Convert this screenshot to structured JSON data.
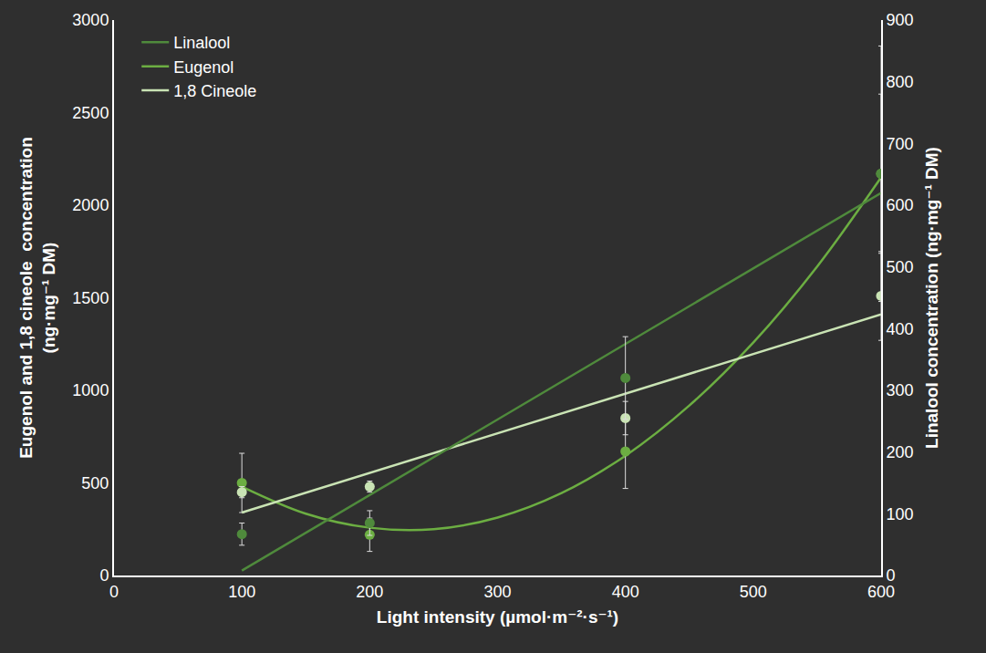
{
  "chart_data": {
    "type": "scatter",
    "xlabel": "Light intensity (µmol·m⁻²·s⁻¹)",
    "ylabel": "Eugenol and 1,8 cineole  concentration\n(ng·mg⁻¹ DM)",
    "y2label": "Linalool concentration (ng·mg⁻¹ DM)",
    "xlim": [
      0,
      600
    ],
    "xticks": [
      0,
      100,
      200,
      300,
      400,
      500,
      600
    ],
    "ylim": [
      0,
      3000
    ],
    "yticks": [
      0,
      500,
      1000,
      1500,
      2000,
      2500,
      3000
    ],
    "y2lim": [
      0,
      900
    ],
    "y2ticks": [
      0,
      100,
      200,
      300,
      400,
      500,
      600,
      700,
      800,
      900
    ],
    "grid": false,
    "legend": "upper left",
    "series": [
      {
        "name": "Linalool",
        "color": "#4f8a3c",
        "axis": "y2",
        "marker": "circle",
        "x": [
          100,
          200,
          400,
          600
        ],
        "values": [
          67,
          85,
          320,
          651
        ],
        "errors": [
          18,
          20,
          67,
          207
        ],
        "trend": {
          "x": [
            100,
            600
          ],
          "values": [
            8,
            620
          ]
        }
      },
      {
        "name": "Eugenol",
        "color": "#6cae42",
        "marker": "circle",
        "x": [
          100,
          200,
          400,
          600
        ],
        "values": [
          500,
          220,
          670,
          2170
        ],
        "errors": [
          160,
          90,
          200,
          430
        ],
        "trend": {
          "x": [
            100,
            150,
            200,
            250,
            300,
            350,
            400,
            450,
            500,
            550,
            600
          ],
          "values": [
            480,
            334,
            258,
            250,
            313,
            445,
            647,
            918,
            1258,
            1669,
            2150
          ]
        }
      },
      {
        "name": "1,8 Cineole",
        "color": "#c9e3b4",
        "marker": "circle",
        "x": [
          100,
          200,
          400,
          600
        ],
        "values": [
          450,
          480,
          850,
          1510
        ],
        "errors": [
          30,
          30,
          90,
          240
        ],
        "trend": {
          "x": [
            100,
            600
          ],
          "values": [
            340,
            1410
          ]
        }
      }
    ]
  }
}
